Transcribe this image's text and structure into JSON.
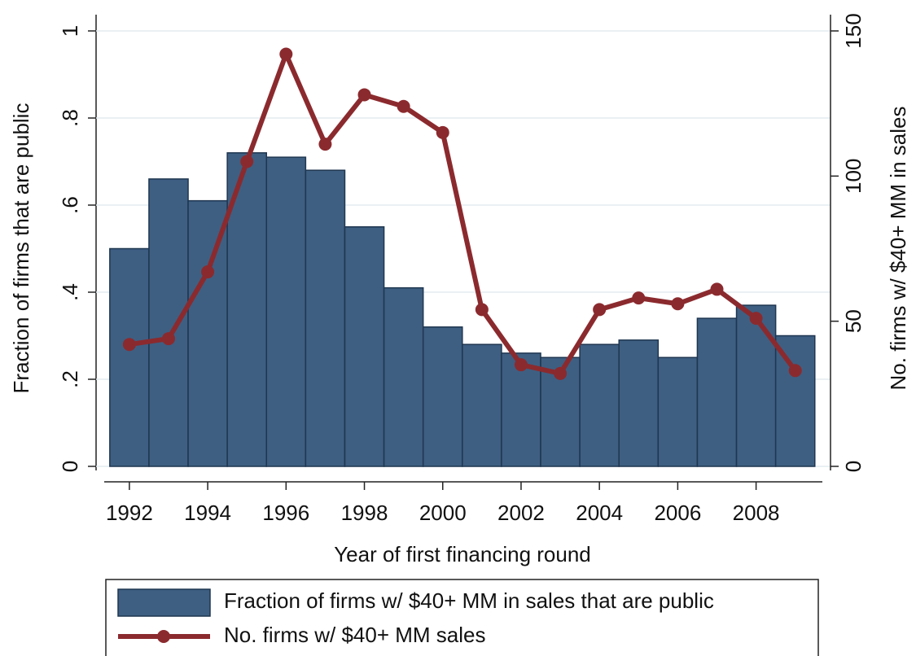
{
  "chart_data": {
    "type": "bar-line",
    "x": [
      1992,
      1993,
      1994,
      1995,
      1996,
      1997,
      1998,
      1999,
      2000,
      2001,
      2002,
      2003,
      2004,
      2005,
      2006,
      2007,
      2008,
      2009
    ],
    "series": [
      {
        "name": "Fraction of firms w/ $40+ MM in sales that are public",
        "type": "bar",
        "color": "#3e5f82",
        "values": [
          0.5,
          0.66,
          0.61,
          0.72,
          0.71,
          0.68,
          0.55,
          0.41,
          0.32,
          0.28,
          0.26,
          0.25,
          0.28,
          0.29,
          0.25,
          0.34,
          0.37,
          0.3
        ]
      },
      {
        "name": "No. firms w/ $40+ MM sales",
        "type": "line",
        "color": "#8b2a2e",
        "axis": "y2",
        "values": [
          42,
          44,
          67,
          105,
          142,
          111,
          128,
          124,
          115,
          54,
          35,
          32,
          54,
          58,
          56,
          61,
          51,
          33
        ]
      }
    ],
    "x_label": "Year of first financing round",
    "y_label": "Fraction of firms that are public",
    "y2_label": "No. firms w/ $40+ MM in sales",
    "xlim": [
      1991.15,
      2009.9
    ],
    "xticks": [
      1992,
      1994,
      1996,
      1998,
      2000,
      2002,
      2004,
      2006,
      2008
    ],
    "ylim": [
      0,
      1
    ],
    "yticks": [
      0,
      {
        "value": 0.2,
        "label": ".2"
      },
      {
        "value": 0.4,
        "label": ".4"
      },
      {
        "value": 0.6,
        "label": ".6"
      },
      {
        "value": 0.8,
        "label": ".8"
      },
      1
    ],
    "y2lim": [
      0,
      150
    ],
    "y2ticks": [
      0,
      50,
      100,
      150
    ],
    "grid": true,
    "legend": "bottom"
  }
}
